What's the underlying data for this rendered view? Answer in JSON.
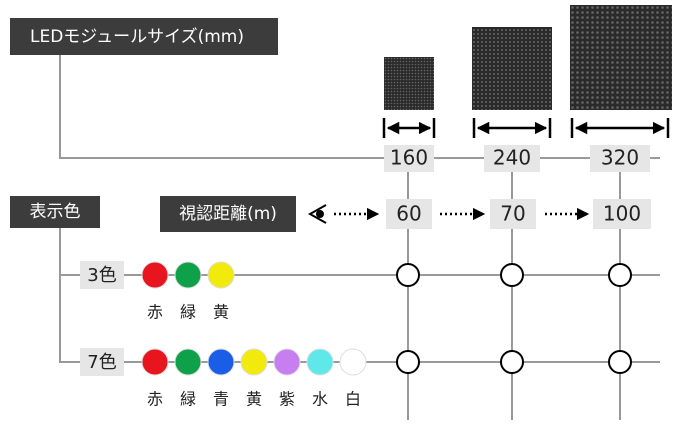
{
  "module_size": {
    "label": "LEDモジュールサイズ(mm)",
    "sizes": [
      "160",
      "240",
      "320"
    ]
  },
  "display_color": {
    "label": "表示色"
  },
  "viewing_distance": {
    "label": "視認距離(m)",
    "values": [
      "60",
      "70",
      "100"
    ]
  },
  "rows": [
    {
      "label": "3色",
      "colors": [
        "赤",
        "緑",
        "黄"
      ],
      "dot_colors": [
        "#e8141e",
        "#0fa04a",
        "#f2ea0c"
      ]
    },
    {
      "label": "7色",
      "colors": [
        "赤",
        "緑",
        "青",
        "黄",
        "紫",
        "水",
        "白"
      ],
      "dot_colors": [
        "#e8141e",
        "#0fa04a",
        "#1a5ee8",
        "#f2ea0c",
        "#c67ef0",
        "#5ee8ea",
        "#ffffff"
      ]
    }
  ]
}
